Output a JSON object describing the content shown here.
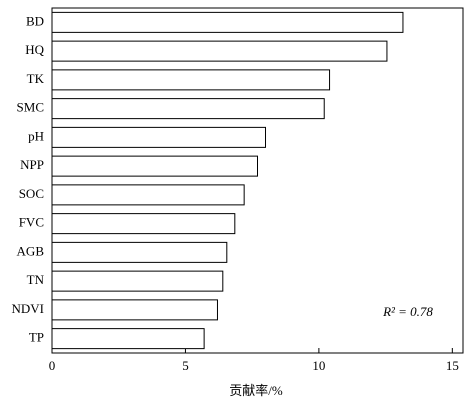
{
  "chart_data": {
    "type": "hbar",
    "categories": [
      "BD",
      "HQ",
      "TK",
      "SMC",
      "pH",
      "NPP",
      "SOC",
      "FVC",
      "AGB",
      "TN",
      "NDVI",
      "TP"
    ],
    "values": [
      13.15,
      12.55,
      10.4,
      10.2,
      8.0,
      7.7,
      7.2,
      6.85,
      6.55,
      6.4,
      6.2,
      5.7
    ],
    "color": "#ffffff",
    "xlim": [
      0,
      15.4
    ],
    "xticks": [
      0,
      5,
      10,
      15
    ],
    "xlabel": "贡献率/%",
    "annotation": "R² = 0.78"
  }
}
